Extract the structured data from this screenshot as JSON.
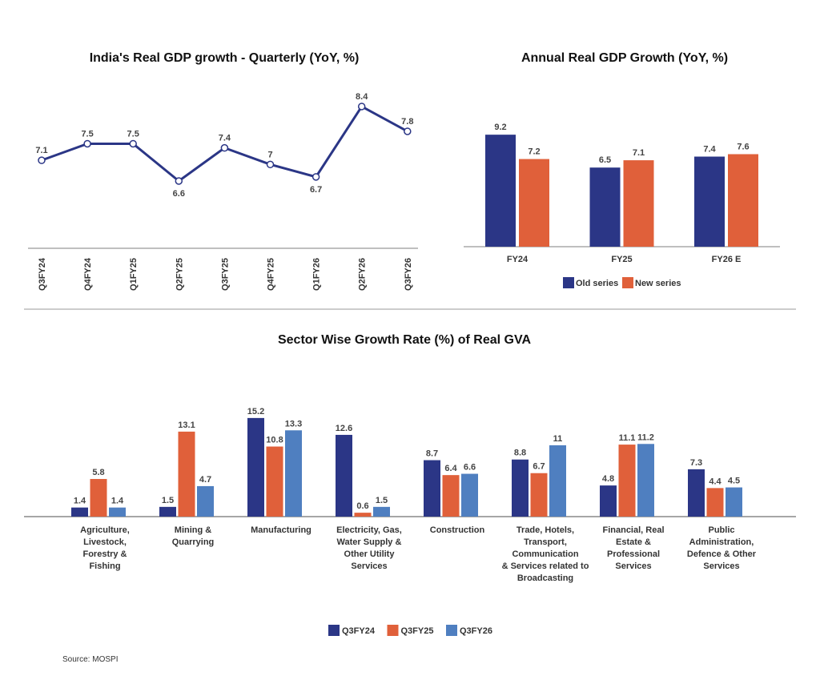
{
  "colors": {
    "navy": "#2b3686",
    "orange": "#e0603a",
    "lightblue": "#4f7fc0",
    "axis": "#aaaaaa"
  },
  "source": "Source: MOSPI",
  "chart_data": [
    {
      "type": "line",
      "title": "India's Real GDP growth - Quarterly (YoY, %)",
      "categories": [
        "Q3FY24",
        "Q4FY24",
        "Q1FY25",
        "Q2FY25",
        "Q3FY25",
        "Q4FY25",
        "Q1FY26",
        "Q2FY26",
        "Q3FY26"
      ],
      "values": [
        7.1,
        7.5,
        7.5,
        6.6,
        7.4,
        7,
        6.7,
        8.4,
        7.8
      ],
      "data_labels": [
        "7.1",
        "7.5",
        "7.5",
        "6.6",
        "7.4",
        "7",
        "6.7",
        "8.4",
        "7.8"
      ],
      "grid": false,
      "color": "#2b3686"
    },
    {
      "type": "bar",
      "title": "Annual Real GDP Growth (YoY, %)",
      "categories": [
        "FY24",
        "FY25",
        "FY26 E"
      ],
      "series": [
        {
          "name": "Old series",
          "values": [
            9.2,
            6.5,
            7.4
          ],
          "labels": [
            "9.2",
            "6.5",
            "7.4"
          ],
          "color": "#2b3686"
        },
        {
          "name": "New series",
          "values": [
            7.2,
            7.1,
            7.6
          ],
          "labels": [
            "7.2",
            "7.1",
            "7.6"
          ],
          "color": "#e0603a"
        }
      ],
      "legend": "bottom",
      "grid": false
    },
    {
      "type": "bar",
      "title": "Sector Wise Growth Rate (%) of Real GVA",
      "categories": [
        [
          "Agriculture,",
          "Livestock,",
          "Forestry &",
          "Fishing"
        ],
        [
          "Mining &",
          "Quarrying"
        ],
        [
          "Manufacturing"
        ],
        [
          "Electricity, Gas,",
          "Water Supply &",
          "Other Utility",
          "Services"
        ],
        [
          "Construction"
        ],
        [
          "Trade, Hotels,",
          "Transport,",
          "Communication",
          "& Services related to",
          "Broadcasting"
        ],
        [
          "Financial, Real",
          "Estate &",
          "Professional",
          "Services"
        ],
        [
          "Public",
          "Administration,",
          "Defence & Other",
          "Services"
        ]
      ],
      "series": [
        {
          "name": "Q3FY24",
          "values": [
            1.4,
            1.5,
            15.2,
            12.6,
            8.7,
            8.8,
            4.8,
            7.3
          ],
          "labels": [
            "1.4",
            "1.5",
            "15.2",
            "12.6",
            "8.7",
            "8.8",
            "4.8",
            "7.3"
          ],
          "color": "#2b3686"
        },
        {
          "name": "Q3FY25",
          "values": [
            5.8,
            13.1,
            10.8,
            0.6,
            6.4,
            6.7,
            11.1,
            4.4
          ],
          "labels": [
            "5.8",
            "13.1",
            "10.8",
            "0.6",
            "6.4",
            "6.7",
            "11.1",
            "4.4"
          ],
          "color": "#e0603a"
        },
        {
          "name": "Q3FY26",
          "values": [
            1.4,
            4.7,
            13.3,
            1.5,
            6.6,
            11,
            11.2,
            4.5
          ],
          "labels": [
            "1.4",
            "4.7",
            "13.3",
            "1.5",
            "6.6",
            "11",
            "11.2",
            "4.5"
          ],
          "color": "#4f7fc0"
        }
      ],
      "legend": "bottom",
      "grid": false
    }
  ]
}
